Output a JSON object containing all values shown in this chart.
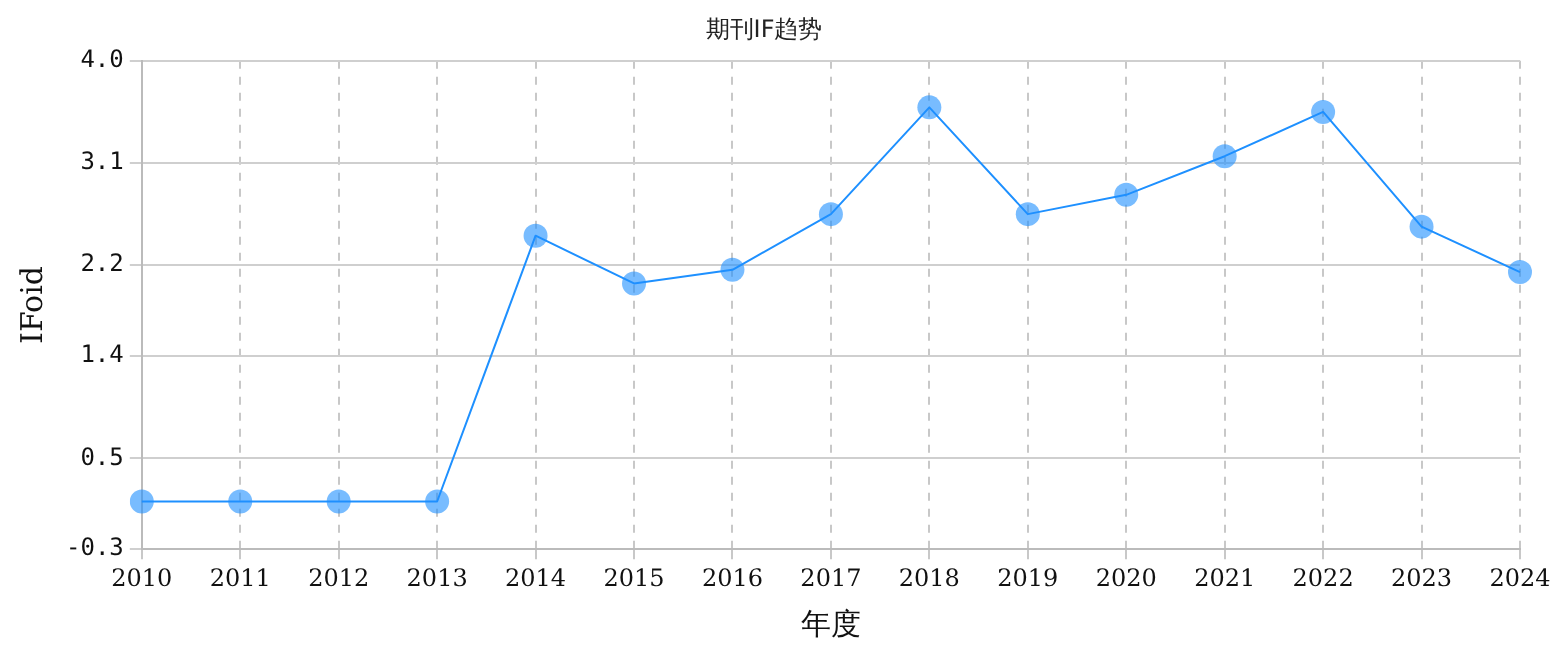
{
  "chart_data": {
    "type": "line",
    "title": "期刊IF趋势",
    "xlabel": "年度",
    "ylabel": "IFoid",
    "categories": [
      "2010",
      "2011",
      "2012",
      "2013",
      "2014",
      "2015",
      "2016",
      "2017",
      "2018",
      "2019",
      "2020",
      "2021",
      "2022",
      "2023",
      "2024"
    ],
    "series": [
      {
        "color": "#1e90ff",
        "values": [
          0.12,
          0.12,
          0.12,
          0.12,
          2.46,
          2.04,
          2.16,
          2.65,
          3.59,
          2.65,
          2.82,
          3.16,
          3.55,
          2.54,
          2.14
        ]
      }
    ],
    "ylim": [
      -0.3,
      4.0
    ],
    "yticks": [
      {
        "value": -0.3,
        "label": "-0.3"
      },
      0.5,
      1.4,
      2.2,
      3.1,
      {
        "value": 4.0,
        "label": "4.0"
      }
    ],
    "grid": true,
    "legend": false,
    "marker": "circle",
    "line_style": "solid"
  }
}
